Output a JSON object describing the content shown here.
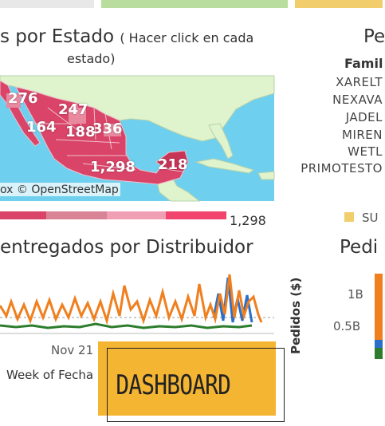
{
  "map_panel": {
    "title": "s por Estado",
    "subtitle_line1": "( Hacer click en cada",
    "subtitle_line2": "estado)",
    "attribution": "ox © OpenStreetMap",
    "legend_value": "1,298",
    "state_values": [
      "276",
      "247",
      "164",
      "188",
      "336",
      "1,298",
      "218"
    ],
    "colors": {
      "sea": "#6ed0ee",
      "land": "#dff3cc",
      "state": "#d94468",
      "state_dark": "#c73456"
    }
  },
  "family_panel": {
    "title": "Pe",
    "header": "Famil",
    "items": [
      "XARELT",
      "NEXAVA",
      "JADEL",
      "MIREN",
      "WETL",
      "PRIMOTESTO"
    ],
    "legend_item": "SU"
  },
  "line_panel": {
    "title": "entregados por Distribuidor",
    "x_tick": "Nov 21",
    "x_label": "Week of Fecha"
  },
  "bar_panel": {
    "title": "Pedi",
    "y_label": "Pedidos ($)",
    "y_ticks": [
      "1B",
      "0.5B"
    ]
  },
  "overlay": {
    "label": "DASHBOARD"
  },
  "top_bars": {
    "colors": [
      "#e8e8e8",
      "#b9dd9e",
      "#f2cd6b"
    ]
  }
}
